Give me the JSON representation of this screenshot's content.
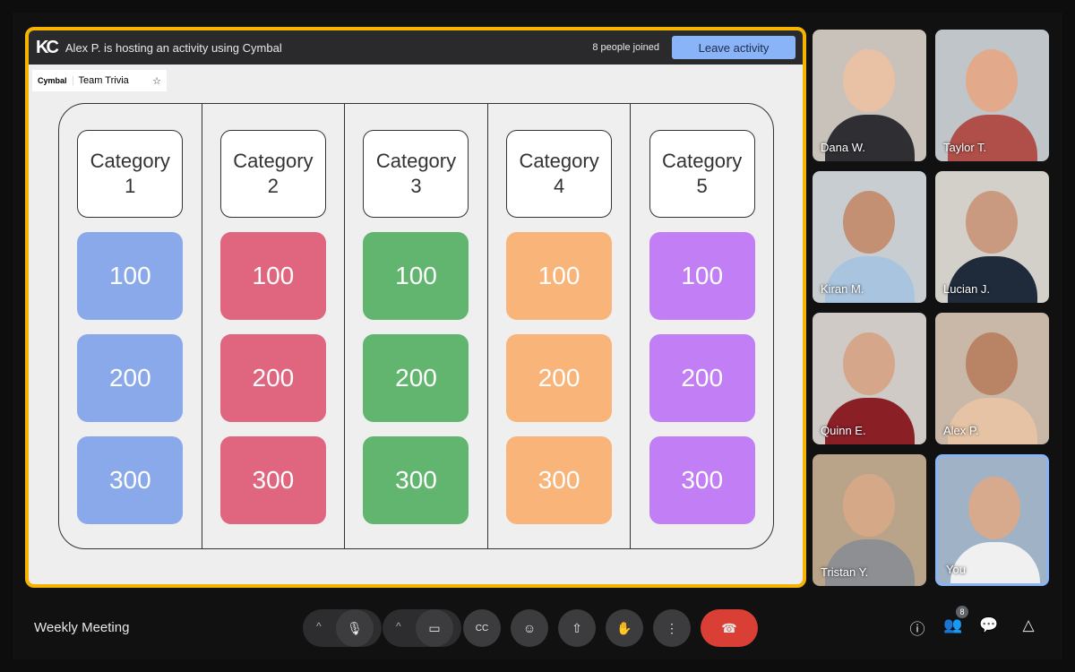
{
  "activity_bar": {
    "logo": "KC",
    "host_text": "Alex P. is hosting an activity using Cymbal",
    "joined_text": "8 people joined",
    "leave_label": "Leave activity"
  },
  "app_tab": {
    "brand": "Cymbal",
    "title": "Team Trivia",
    "star_icon": "☆"
  },
  "board": {
    "categories": [
      {
        "label": "Category\n1",
        "color": "#8aa9ea",
        "values": [
          "100",
          "200",
          "300"
        ]
      },
      {
        "label": "Category\n2",
        "color": "#e06680",
        "values": [
          "100",
          "200",
          "300"
        ]
      },
      {
        "label": "Category\n3",
        "color": "#62b56f",
        "values": [
          "100",
          "200",
          "300"
        ]
      },
      {
        "label": "Category\n4",
        "color": "#f9b47a",
        "values": [
          "100",
          "200",
          "300"
        ]
      },
      {
        "label": "Category\n5",
        "color": "#c27ef5",
        "values": [
          "100",
          "200",
          "300"
        ]
      }
    ]
  },
  "participants": [
    {
      "name": "Dana W."
    },
    {
      "name": "Taylor T."
    },
    {
      "name": "Kiran M."
    },
    {
      "name": "Lucian J."
    },
    {
      "name": "Quinn E."
    },
    {
      "name": "Alex P."
    },
    {
      "name": "Tristan Y."
    },
    {
      "name": "You"
    }
  ],
  "footer": {
    "meeting_title": "Weekly Meeting",
    "people_count": "8",
    "accent_end_call": "#d93f35"
  }
}
